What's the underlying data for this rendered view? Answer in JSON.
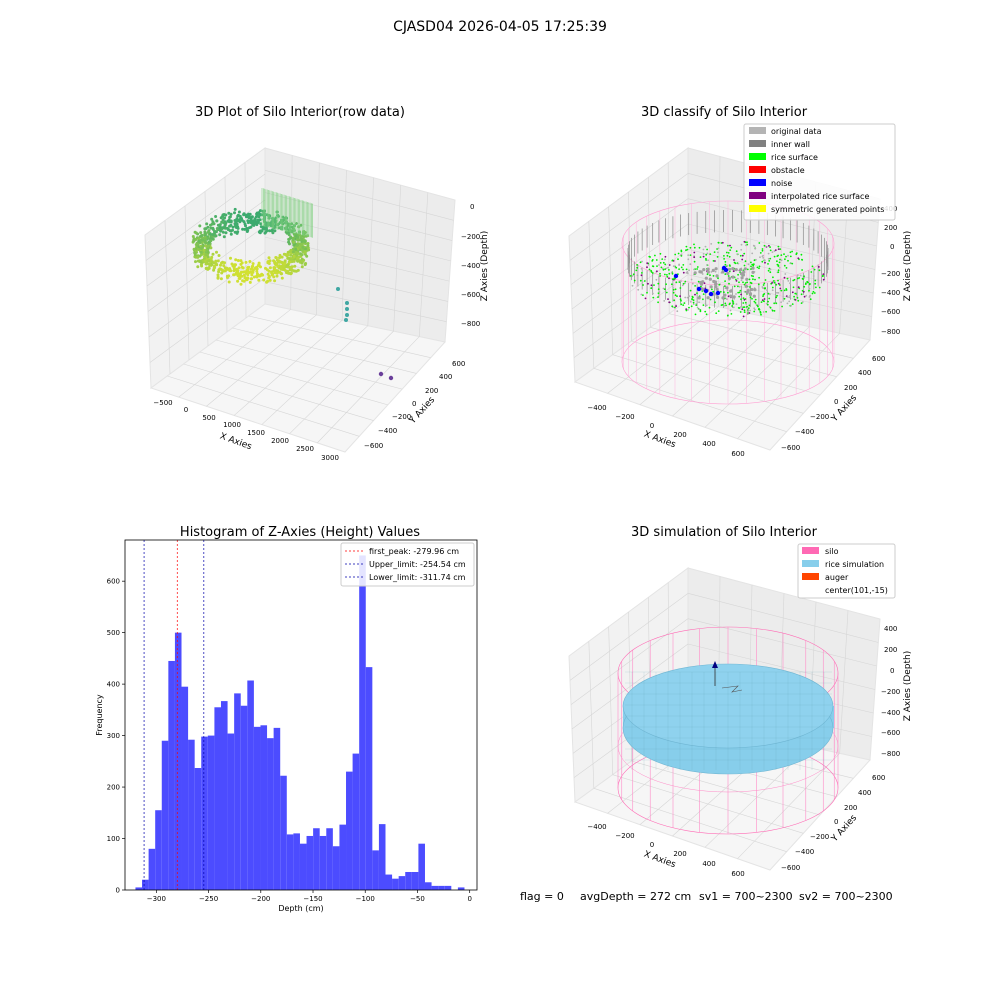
{
  "suptitle": "CJASD04 2026-04-05 17:25:39",
  "footer": {
    "flag": "flag = 0",
    "avg": "avgDepth = 272 cm",
    "sv1": "sv1 = 700~2300",
    "sv2": "sv2 = 700~2300"
  },
  "panels": {
    "raw": {
      "title": "3D Plot of Silo Interior(row data)",
      "xlabel": "X Axies",
      "ylabel": "Y Axies",
      "zlabel": "Z Axies (Depth)",
      "xticks": [
        "−500",
        "0",
        "500",
        "1000",
        "1500",
        "2000",
        "2500",
        "3000"
      ],
      "yticks": [
        "600",
        "400",
        "200",
        "0",
        "−200",
        "−400",
        "−600"
      ],
      "zticks": [
        "0",
        "−200",
        "−400",
        "−600",
        "−800"
      ]
    },
    "classify": {
      "title": "3D classify of Silo Interior",
      "xlabel": "X Axies",
      "ylabel": "Y Axies",
      "zlabel": "Z Axies (Depth)",
      "xticks": [
        "−400",
        "−200",
        "0",
        "200",
        "400",
        "600"
      ],
      "yticks": [
        "600",
        "400",
        "200",
        "0",
        "−200",
        "−400",
        "−600"
      ],
      "zticks": [
        "400",
        "200",
        "0",
        "−200",
        "−400",
        "−600",
        "−800"
      ],
      "legend": [
        {
          "label": "original data",
          "color": "#b4b4b4"
        },
        {
          "label": "inner wall",
          "color": "#808080"
        },
        {
          "label": "rice surface",
          "color": "#00ff00"
        },
        {
          "label": "obstacle",
          "color": "#ff0000"
        },
        {
          "label": "noise",
          "color": "#0000ff"
        },
        {
          "label": "interpolated rice surface",
          "color": "#800080"
        },
        {
          "label": "symmetric generated points",
          "color": "#ffff00"
        }
      ]
    },
    "sim": {
      "title": "3D simulation of Silo Interior",
      "xlabel": "X Axies",
      "ylabel": "Y Axies",
      "zlabel": "Z Axies (Depth)",
      "xticks": [
        "−400",
        "−200",
        "0",
        "200",
        "400",
        "600"
      ],
      "yticks": [
        "600",
        "400",
        "200",
        "0",
        "−200",
        "−400",
        "−600"
      ],
      "zticks": [
        "400",
        "200",
        "0",
        "−200",
        "−400",
        "−600",
        "−800"
      ],
      "legend": [
        {
          "label": "silo",
          "color": "#ff69b4"
        },
        {
          "label": "rice simulation",
          "color": "#87ceeb"
        },
        {
          "label": "auger",
          "color": "#ff4500"
        },
        {
          "label": "center(101,-15)",
          "color": ""
        }
      ]
    }
  },
  "chart_data": {
    "type": "bar",
    "title": "Histogram of Z-Axies (Height) Values",
    "xlabel": "Depth (cm)",
    "ylabel": "Frequency",
    "xlim": [
      -330,
      7
    ],
    "ylim": [
      0,
      680
    ],
    "xticks": [
      -300,
      -250,
      -200,
      -150,
      -100,
      -50,
      0
    ],
    "xtick_labels": [
      "−300",
      "−250",
      "−200",
      "−150",
      "−100",
      "−50",
      "0"
    ],
    "yticks": [
      0,
      100,
      200,
      300,
      400,
      500,
      600
    ],
    "bar_color": "#4c4cff",
    "bin_start": -320,
    "bin_width": 6.3,
    "values": [
      5,
      20,
      80,
      155,
      290,
      445,
      500,
      395,
      292,
      237,
      298,
      300,
      355,
      367,
      304,
      382,
      358,
      407,
      317,
      320,
      295,
      315,
      222,
      108,
      110,
      90,
      105,
      120,
      105,
      120,
      85,
      127,
      230,
      265,
      650,
      433,
      77,
      128,
      30,
      22,
      27,
      35,
      35,
      90,
      15,
      8,
      8,
      8,
      0,
      5
    ],
    "vlines": [
      {
        "x": -279.96,
        "label": "first_peak: -279.96 cm",
        "color": "#ff0000"
      },
      {
        "x": -254.54,
        "label": "Upper_limit: -254.54 cm",
        "color": "#0000aa"
      },
      {
        "x": -311.74,
        "label": "Lower_limit: -311.74 cm",
        "color": "#0000aa"
      }
    ],
    "legend_position": "upper right"
  }
}
